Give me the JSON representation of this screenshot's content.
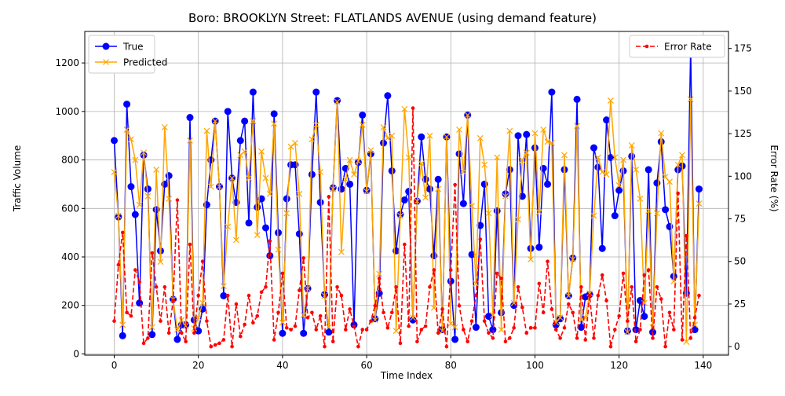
{
  "chart_data": {
    "type": "line",
    "title": "Boro: BROOKLYN Street: FLATLANDS AVENUE (using demand feature)",
    "xlabel": "Time Index",
    "ylabel_left": "Traffic Volume",
    "ylabel_right": "Error Rate (%)",
    "xlim": [
      -7,
      146
    ],
    "ylim_left": [
      -5,
      1330
    ],
    "ylim_right": [
      -5,
      185
    ],
    "xticks": [
      0,
      20,
      40,
      60,
      80,
      100,
      120,
      140
    ],
    "yticks_left": [
      0,
      200,
      400,
      600,
      800,
      1000,
      1200
    ],
    "yticks_right": [
      0,
      25,
      50,
      75,
      100,
      125,
      150,
      175
    ],
    "grid": true,
    "legend_left": {
      "placement": "upper-left",
      "entries": [
        "True",
        "Predicted"
      ]
    },
    "legend_right": {
      "placement": "upper-right",
      "entries": [
        "Error Rate"
      ]
    },
    "colors": {
      "true": "#0000ff",
      "predicted": "#ffa500",
      "error": "#ff0000"
    },
    "x": [
      0,
      1,
      2,
      3,
      4,
      5,
      6,
      7,
      8,
      9,
      10,
      11,
      12,
      13,
      14,
      15,
      16,
      17,
      18,
      19,
      20,
      21,
      22,
      23,
      24,
      25,
      26,
      27,
      28,
      29,
      30,
      31,
      32,
      33,
      34,
      35,
      36,
      37,
      38,
      39,
      40,
      41,
      42,
      43,
      44,
      45,
      46,
      47,
      48,
      49,
      50,
      51,
      52,
      53,
      54,
      55,
      56,
      57,
      58,
      59,
      60,
      61,
      62,
      63,
      64,
      65,
      66,
      67,
      68,
      69,
      70,
      71,
      72,
      73,
      74,
      75,
      76,
      77,
      78,
      79,
      80,
      81,
      82,
      83,
      84,
      85,
      86,
      87,
      88,
      89,
      90,
      91,
      92,
      93,
      94,
      95,
      96,
      97,
      98,
      99,
      100,
      101,
      102,
      103,
      104,
      105,
      106,
      107,
      108,
      109,
      110,
      111,
      112,
      113,
      114,
      115,
      116,
      117,
      118,
      119,
      120,
      121,
      122,
      123,
      124,
      125,
      126,
      127,
      128,
      129,
      130,
      131,
      132,
      133,
      134,
      135,
      136,
      137,
      138,
      139
    ],
    "series": [
      {
        "name": "True",
        "axis": "left",
        "marker": "circle",
        "style": "solid",
        "values": [
          880,
          565,
          75,
          1030,
          690,
          575,
          210,
          820,
          680,
          80,
          595,
          425,
          700,
          735,
          225,
          60,
          120,
          120,
          975,
          140,
          95,
          185,
          615,
          800,
          960,
          690,
          240,
          1000,
          725,
          625,
          880,
          960,
          540,
          1080,
          605,
          640,
          520,
          405,
          990,
          500,
          85,
          640,
          780,
          780,
          495,
          85,
          270,
          740,
          1080,
          625,
          245,
          90,
          685,
          1045,
          680,
          765,
          700,
          120,
          790,
          985,
          675,
          825,
          145,
          250,
          870,
          1065,
          755,
          425,
          575,
          635,
          670,
          140,
          630,
          895,
          720,
          680,
          405,
          720,
          100,
          895,
          300,
          60,
          825,
          620,
          985,
          410,
          110,
          530,
          700,
          155,
          100,
          590,
          170,
          660,
          760,
          200,
          900,
          650,
          905,
          435,
          850,
          440,
          765,
          700,
          1080,
          120,
          145,
          760,
          240,
          395,
          1050,
          110,
          235,
          245,
          850,
          770,
          435,
          965,
          810,
          570,
          675,
          755,
          95,
          815,
          100,
          220,
          155,
          760,
          90,
          705,
          875,
          595,
          525,
          320,
          760,
          775,
          250,
          1270,
          100,
          680
        ]
      },
      {
        "name": "Predicted",
        "axis": "left",
        "marker": "x",
        "style": "solid",
        "values": [
          750,
          570,
          120,
          925,
          885,
          800,
          615,
          830,
          650,
          110,
          760,
          380,
          935,
          640,
          225,
          100,
          140,
          115,
          880,
          105,
          150,
          210,
          920,
          690,
          960,
          690,
          280,
          525,
          725,
          470,
          820,
          835,
          725,
          960,
          490,
          835,
          725,
          660,
          950,
          430,
          130,
          580,
          855,
          870,
          660,
          160,
          270,
          885,
          945,
          750,
          240,
          110,
          680,
          1040,
          420,
          720,
          800,
          740,
          795,
          945,
          670,
          840,
          140,
          330,
          935,
          890,
          900,
          95,
          570,
          1010,
          810,
          150,
          630,
          785,
          645,
          900,
          190,
          680,
          95,
          895,
          125,
          110,
          925,
          750,
          985,
          610,
          290,
          890,
          780,
          580,
          160,
          810,
          100,
          650,
          920,
          210,
          555,
          800,
          830,
          390,
          910,
          585,
          925,
          875,
          870,
          130,
          150,
          820,
          240,
          390,
          940,
          140,
          150,
          250,
          570,
          810,
          750,
          740,
          1045,
          810,
          695,
          800,
          90,
          860,
          760,
          640,
          210,
          590,
          110,
          580,
          910,
          730,
          710,
          300,
          780,
          820,
          50,
          1050,
          120,
          620
        ]
      },
      {
        "name": "Error Rate",
        "axis": "right",
        "marker": "dot",
        "style": "dashed",
        "values": [
          15,
          48,
          67,
          20,
          18,
          45,
          38,
          2,
          5,
          55,
          35,
          15,
          35,
          8,
          27,
          86,
          8,
          3,
          60,
          8,
          30,
          50,
          15,
          0,
          1,
          2,
          4,
          30,
          0,
          25,
          6,
          13,
          30,
          14,
          18,
          32,
          35,
          62,
          4,
          20,
          43,
          11,
          10,
          12,
          33,
          52,
          17,
          20,
          10,
          18,
          0,
          88,
          3,
          35,
          30,
          10,
          22,
          12,
          0,
          10,
          10,
          15,
          24,
          40,
          20,
          11,
          20,
          35,
          2,
          60,
          12,
          140,
          3,
          10,
          12,
          35,
          45,
          8,
          22,
          0,
          45,
          95,
          24,
          10,
          3,
          15,
          30,
          63,
          15,
          8,
          5,
          43,
          40,
          3,
          5,
          11,
          35,
          23,
          8,
          11,
          11,
          37,
          20,
          50,
          22,
          10,
          5,
          11,
          25,
          20,
          5,
          35,
          4,
          30,
          5,
          30,
          42,
          27,
          0,
          10,
          18,
          43,
          15,
          35,
          3,
          10,
          42,
          45,
          5,
          35,
          28,
          0,
          20,
          10,
          90,
          4,
          65,
          5,
          17,
          30
        ]
      }
    ]
  }
}
